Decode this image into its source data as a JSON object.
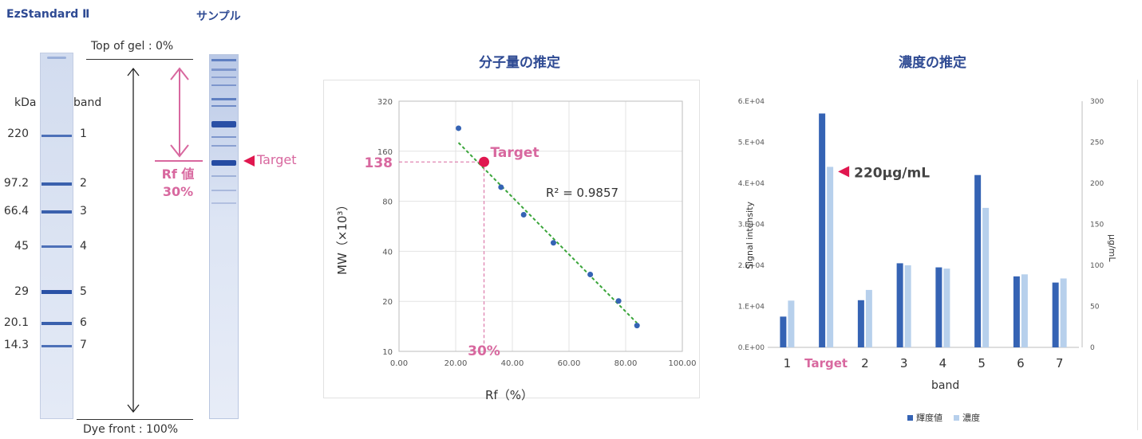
{
  "gel": {
    "standard_label": "EzStandard Ⅱ",
    "sample_label": "サンプル",
    "top_label": "Top of gel : 0%",
    "bottom_label": "Dye front : 100%",
    "kda_header": "kDa",
    "band_header": "band",
    "markers": [
      {
        "kda": "220",
        "band": "1"
      },
      {
        "kda": "97.2",
        "band": "2"
      },
      {
        "kda": "66.4",
        "band": "3"
      },
      {
        "kda": "45",
        "band": "4"
      },
      {
        "kda": "29",
        "band": "5"
      },
      {
        "kda": "20.1",
        "band": "6"
      },
      {
        "kda": "14.3",
        "band": "7"
      }
    ],
    "rf_label_line1": "Rf 値",
    "rf_label_line2": "30%",
    "target_label": "Target",
    "colors": {
      "band": "#2f56a8",
      "lane": "#c9d4ea",
      "accent": "#d8689f",
      "target_arrow": "#e0174f"
    }
  },
  "chart_data": [
    {
      "type": "scatter",
      "title": "分子量の推定",
      "xlabel": "Rf（%）",
      "ylabel": "MW（×10³）",
      "xlim": [
        0,
        100
      ],
      "ylim": [
        10,
        320
      ],
      "yscale": "log2",
      "xticks": [
        "0.00",
        "20.00",
        "40.00",
        "60.00",
        "80.00",
        "100.00"
      ],
      "yticks": [
        "10",
        "20",
        "40",
        "80",
        "160",
        "320"
      ],
      "points": [
        {
          "x": 21,
          "y": 220
        },
        {
          "x": 36,
          "y": 97.2
        },
        {
          "x": 44,
          "y": 66.4
        },
        {
          "x": 54.5,
          "y": 45
        },
        {
          "x": 67.5,
          "y": 29
        },
        {
          "x": 77.5,
          "y": 20.1
        },
        {
          "x": 84,
          "y": 14.3
        }
      ],
      "trendline": {
        "x": [
          21,
          84
        ],
        "y": [
          180,
          14.8
        ],
        "color": "#3aa53a"
      },
      "r2_label": "R² = 0.9857",
      "target": {
        "x": 30,
        "y": 138,
        "label": "Target",
        "y_label": "138",
        "x_label": "30%"
      },
      "grid": true,
      "colors": {
        "points": "#3563b4",
        "target": "#e0174f",
        "accent": "#d8689f"
      }
    },
    {
      "type": "bar",
      "title": "濃度の推定",
      "xlabel": "band",
      "ylabel": "Signal intensity",
      "y2label": "μg/mL",
      "categories": [
        "1",
        "Target",
        "2",
        "3",
        "4",
        "5",
        "6",
        "7"
      ],
      "ylim": [
        0,
        60000
      ],
      "y2lim": [
        0,
        300
      ],
      "yticks": [
        "0.E+00",
        "1.E+04",
        "2.E+04",
        "3.E+04",
        "4.E+04",
        "5.E+04",
        "6.E+04"
      ],
      "y2ticks": [
        "0",
        "50",
        "100",
        "150",
        "200",
        "250",
        "300"
      ],
      "series": [
        {
          "name": "輝度値",
          "axis": "left",
          "color": "#3563b4",
          "values": [
            7500,
            57000,
            11500,
            20500,
            19500,
            42000,
            17300,
            15800
          ]
        },
        {
          "name": "濃度",
          "axis": "right",
          "color": "#b7d0ec",
          "values": [
            57,
            220,
            70,
            100,
            96,
            170,
            89,
            84
          ]
        }
      ],
      "annotation": "220μg/mL",
      "legend_position": "bottom",
      "grid": false
    }
  ]
}
